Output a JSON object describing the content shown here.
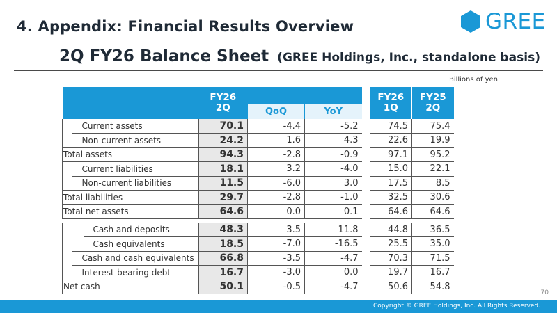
{
  "header": {
    "section_title": "4. Appendix: Financial Results Overview",
    "brand": "GREE",
    "title_main": "2Q FY26 Balance Sheet",
    "title_sub": "(GREE Holdings, Inc., standalone basis)",
    "unit": "Billions of yen"
  },
  "table_head": {
    "current_period": [
      "FY26",
      "2Q"
    ],
    "qoq": "QoQ",
    "yoy": "YoY",
    "prev_q": [
      "FY26",
      "1Q"
    ],
    "prev_y": [
      "FY25",
      "2Q"
    ]
  },
  "rows_top": [
    {
      "label": "Current assets",
      "current": "70.1",
      "qoq": "-4.4",
      "yoy": "-5.2",
      "prev_q": "74.5",
      "prev_y": "75.4"
    },
    {
      "label": "Non-current assets",
      "current": "24.2",
      "qoq": "1.6",
      "yoy": "4.3",
      "prev_q": "22.6",
      "prev_y": "19.9"
    },
    {
      "label": "Total assets",
      "current": "94.3",
      "qoq": "-2.8",
      "yoy": "-0.9",
      "prev_q": "97.1",
      "prev_y": "95.2"
    },
    {
      "label": "Current liabilities",
      "current": "18.1",
      "qoq": "3.2",
      "yoy": "-4.0",
      "prev_q": "15.0",
      "prev_y": "22.1"
    },
    {
      "label": "Non-current liabilities",
      "current": "11.5",
      "qoq": "-6.0",
      "yoy": "3.0",
      "prev_q": "17.5",
      "prev_y": "8.5"
    },
    {
      "label": "Total liabilities",
      "current": "29.7",
      "qoq": "-2.8",
      "yoy": "-1.0",
      "prev_q": "32.5",
      "prev_y": "30.6"
    },
    {
      "label": "Total net assets",
      "current": "64.6",
      "qoq": "0.0",
      "yoy": "0.1",
      "prev_q": "64.6",
      "prev_y": "64.6"
    }
  ],
  "rows_bottom": [
    {
      "label": "Cash and deposits",
      "current": "48.3",
      "qoq": "3.5",
      "yoy": "11.8",
      "prev_q": "44.8",
      "prev_y": "36.5"
    },
    {
      "label": "Cash equivalents",
      "current": "18.5",
      "qoq": "-7.0",
      "yoy": "-16.5",
      "prev_q": "25.5",
      "prev_y": "35.0"
    },
    {
      "label": "Cash and cash equivalents",
      "current": "66.8",
      "qoq": "-3.5",
      "yoy": "-4.7",
      "prev_q": "70.3",
      "prev_y": "71.5"
    },
    {
      "label": "Interest-bearing debt",
      "current": "16.7",
      "qoq": "-3.0",
      "yoy": "0.0",
      "prev_q": "19.7",
      "prev_y": "16.7"
    },
    {
      "label": "Net cash",
      "current": "50.1",
      "qoq": "-0.5",
      "yoy": "-4.7",
      "prev_q": "50.6",
      "prev_y": "54.8"
    }
  ],
  "footer": {
    "copyright": "Copyright © GREE Holdings, Inc. All Rights Reserved.",
    "page_number": "70"
  },
  "colors": {
    "brand": "#1a98d6",
    "highlight": "#e8e8e8",
    "subheader": "#e5f3fb"
  }
}
